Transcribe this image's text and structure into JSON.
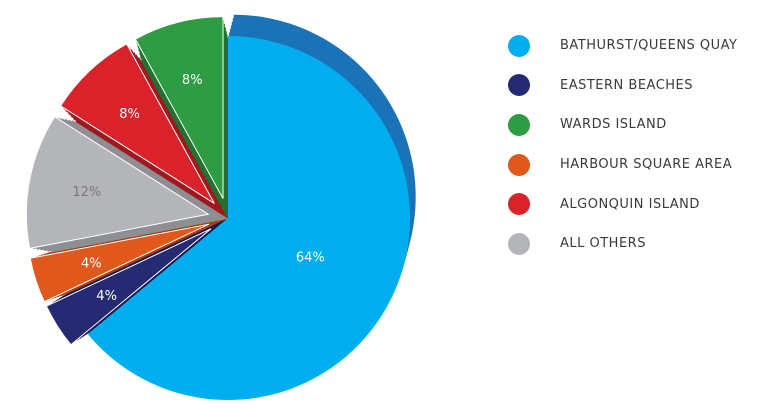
{
  "chart_data": {
    "type": "pie",
    "style": "3d-exploded",
    "legend_position": "right",
    "slices": [
      {
        "name": "BATHURST/QUEENS QUAY",
        "value": 64,
        "label": "64%",
        "color": "#00aeef",
        "side_color": "#1a72b8",
        "label_color": "#ffffff"
      },
      {
        "name": "EASTERN BEACHES",
        "value": 4,
        "label": "4%",
        "color": "#262a73",
        "side_color": "#161a52",
        "label_color": "#ffffff"
      },
      {
        "name": "HARBOUR SQUARE AREA",
        "value": 4,
        "label": "4%",
        "color": "#e0581b",
        "side_color": "#a63f12",
        "label_color": "#ffffff"
      },
      {
        "name": "ALL OTHERS",
        "value": 12,
        "label": "12%",
        "color": "#b3b5b8",
        "side_color": "#8d8f92",
        "label_color": "#7a7a7a"
      },
      {
        "name": "ALGONQUIN ISLAND",
        "value": 8,
        "label": "8%",
        "color": "#d9222a",
        "side_color": "#9e1a1f",
        "label_color": "#ffffff"
      },
      {
        "name": "WARDS ISLAND",
        "value": 8,
        "label": "8%",
        "color": "#2e9c43",
        "side_color": "#1f7230",
        "label_color": "#ffffff"
      }
    ],
    "legend": [
      {
        "name": "BATHURST/QUEENS QUAY",
        "color": "#00aeef"
      },
      {
        "name": "EASTERN BEACHES",
        "color": "#262a73"
      },
      {
        "name": "WARDS ISLAND",
        "color": "#2e9c43"
      },
      {
        "name": "HARBOUR SQUARE AREA",
        "color": "#e0581b"
      },
      {
        "name": "ALGONQUIN ISLAND",
        "color": "#d9222a"
      },
      {
        "name": "ALL OTHERS",
        "color": "#b3b5b8"
      }
    ]
  }
}
